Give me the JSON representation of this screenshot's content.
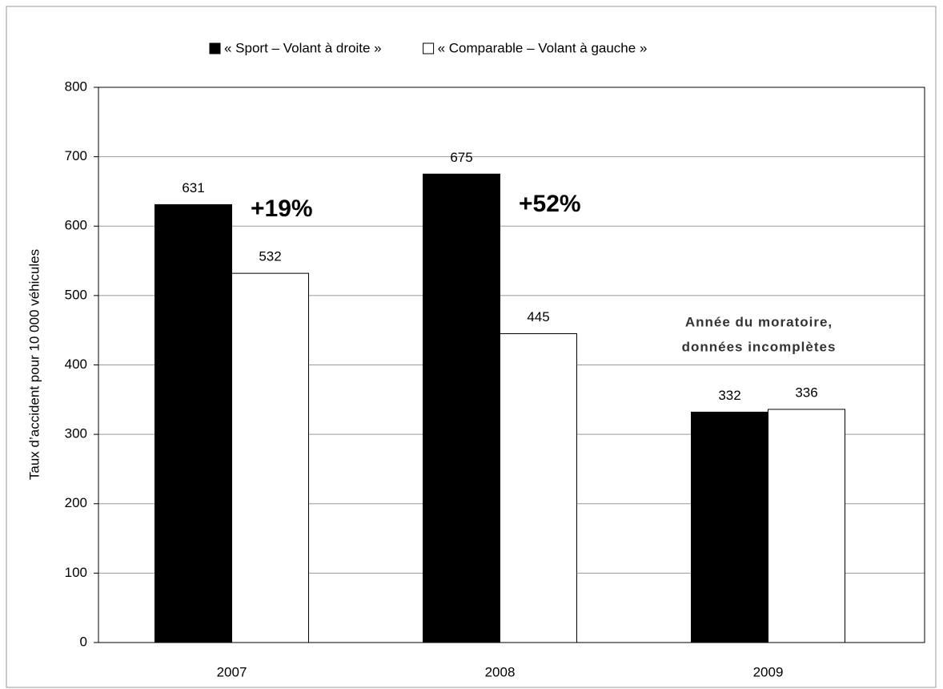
{
  "chart_data": {
    "type": "bar",
    "categories": [
      "2007",
      "2008",
      "2009"
    ],
    "series": [
      {
        "name": "« Sport – Volant à droite »",
        "color": "#000000",
        "values": [
          631,
          675,
          332
        ]
      },
      {
        "name": "« Comparable – Volant à gauche »",
        "color": "#ffffff",
        "values": [
          532,
          445,
          336
        ]
      }
    ],
    "y_label": "Taux d’accident pour 10 000 véhicules",
    "ylim": [
      0,
      800
    ],
    "yticks": [
      0,
      100,
      200,
      300,
      400,
      500,
      600,
      700,
      800
    ],
    "grid": true,
    "legend": "top",
    "annotations": [
      "+19%",
      "+52%",
      "Année du moratoire,",
      "données incomplètes"
    ]
  }
}
